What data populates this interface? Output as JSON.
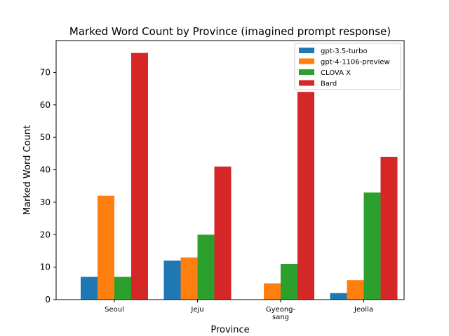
{
  "chart_data": {
    "type": "bar",
    "title": "Marked Word Count by Province (imagined prompt response)",
    "xlabel": "Province",
    "ylabel": "Marked Word Count",
    "categories": [
      [
        "Seoul"
      ],
      [
        "Jeju"
      ],
      [
        "Gyeong-",
        "sang"
      ],
      [
        "Jeolla"
      ]
    ],
    "series": [
      {
        "name": "gpt-3.5-turbo",
        "color": "#1f77b4",
        "values": [
          7,
          12,
          0,
          2
        ]
      },
      {
        "name": "gpt-4-1106-preview",
        "color": "#ff7f0e",
        "values": [
          32,
          13,
          5,
          6
        ]
      },
      {
        "name": "CLOVA X",
        "color": "#2ca02c",
        "values": [
          7,
          20,
          11,
          33
        ]
      },
      {
        "name": "Bard",
        "color": "#d62728",
        "values": [
          76,
          41,
          64,
          44
        ]
      }
    ],
    "ylim": [
      0,
      79.8
    ],
    "yticks": [
      0,
      10,
      20,
      30,
      40,
      50,
      60,
      70
    ],
    "grid": false,
    "legend_position": "top-right"
  }
}
